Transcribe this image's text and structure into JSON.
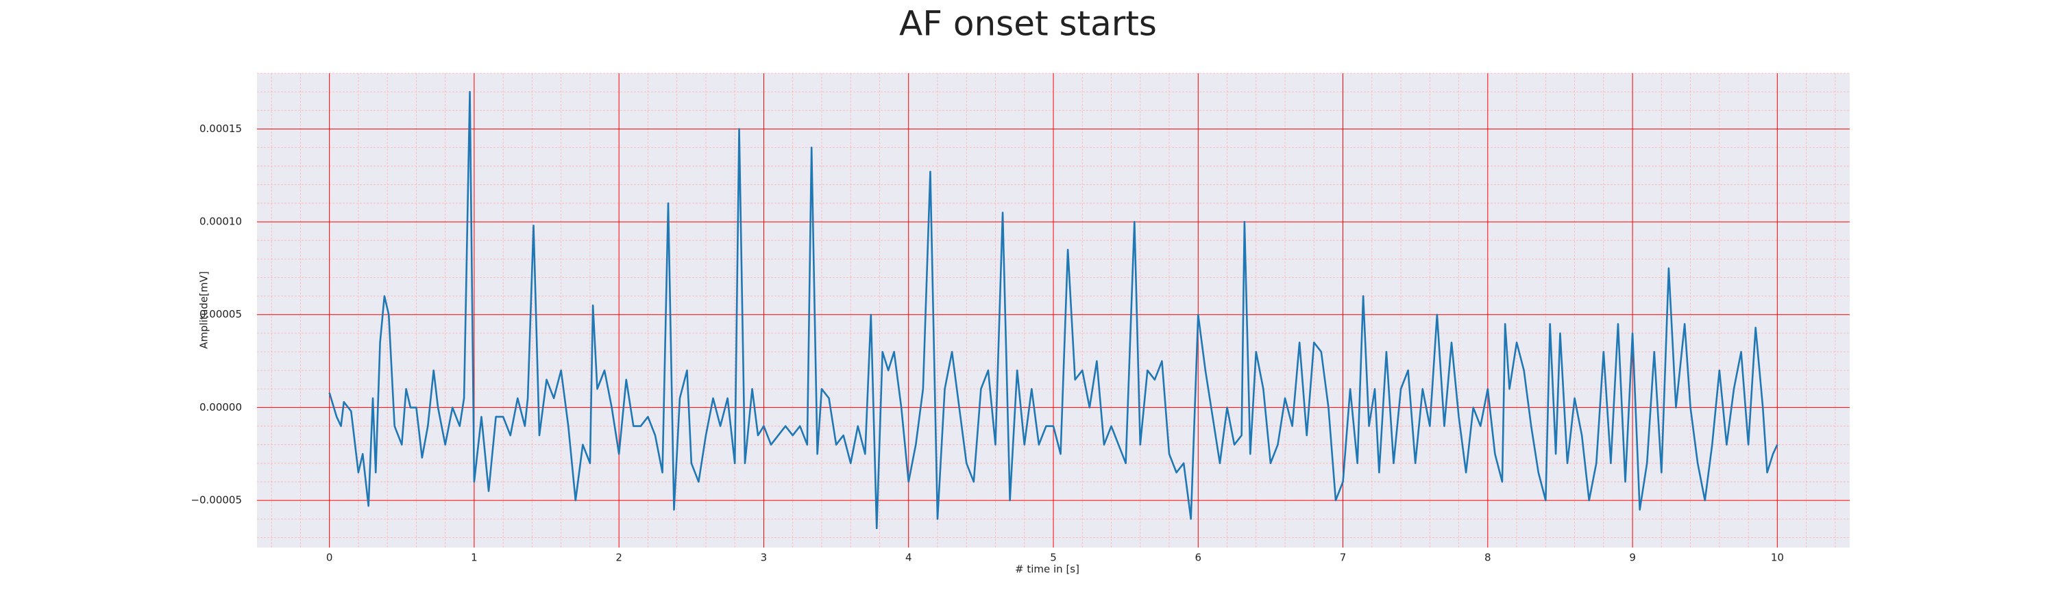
{
  "chart_data": {
    "type": "line",
    "title": "AF onset starts",
    "xlabel": "# time in [s]",
    "ylabel": "Amplitude[mV]",
    "color": "#1f77b4",
    "grid": true,
    "grid_color": "#ff0000",
    "minor_grid": true,
    "minor_grid_color": "#ffb3b3",
    "minor_grid_divisions": 5,
    "xlim": [
      -0.5,
      10.5
    ],
    "ylim": [
      -7.54e-05,
      0.00018
    ],
    "xticks": [
      0,
      1,
      2,
      3,
      4,
      5,
      6,
      7,
      8,
      9,
      10
    ],
    "yticks": [
      {
        "value": -5e-05,
        "label": "−0.00005"
      },
      {
        "value": 0,
        "label": "0.00000"
      },
      {
        "value": 5e-05,
        "label": "0.00005"
      },
      {
        "value": 0.0001,
        "label": "0.00010"
      },
      {
        "value": 0.00015,
        "label": "0.00015"
      }
    ],
    "x": [
      0,
      0.05,
      0.08,
      0.1,
      0.15,
      0.2,
      0.23,
      0.27,
      0.3,
      0.32,
      0.35,
      0.38,
      0.41,
      0.45,
      0.5,
      0.53,
      0.56,
      0.6,
      0.64,
      0.68,
      0.72,
      0.75,
      0.8,
      0.85,
      0.9,
      0.93,
      0.97,
      1.0,
      1.05,
      1.1,
      1.15,
      1.2,
      1.25,
      1.3,
      1.35,
      1.37,
      1.41,
      1.45,
      1.5,
      1.55,
      1.6,
      1.65,
      1.7,
      1.75,
      1.8,
      1.82,
      1.85,
      1.9,
      1.95,
      2.0,
      2.05,
      2.1,
      2.15,
      2.2,
      2.25,
      2.3,
      2.34,
      2.38,
      2.42,
      2.47,
      2.5,
      2.55,
      2.6,
      2.65,
      2.7,
      2.75,
      2.8,
      2.83,
      2.87,
      2.92,
      2.96,
      3.0,
      3.05,
      3.1,
      3.15,
      3.2,
      3.25,
      3.3,
      3.33,
      3.37,
      3.4,
      3.45,
      3.5,
      3.55,
      3.6,
      3.65,
      3.7,
      3.74,
      3.78,
      3.82,
      3.86,
      3.9,
      3.95,
      4.0,
      4.05,
      4.1,
      4.15,
      4.2,
      4.25,
      4.3,
      4.35,
      4.4,
      4.45,
      4.5,
      4.55,
      4.6,
      4.65,
      4.7,
      4.75,
      4.8,
      4.85,
      4.9,
      4.95,
      5.0,
      5.05,
      5.1,
      5.15,
      5.2,
      5.25,
      5.3,
      5.35,
      5.4,
      5.45,
      5.5,
      5.56,
      5.6,
      5.65,
      5.7,
      5.75,
      5.8,
      5.85,
      5.9,
      5.95,
      6.0,
      6.05,
      6.1,
      6.15,
      6.2,
      6.25,
      6.3,
      6.32,
      6.36,
      6.4,
      6.45,
      6.5,
      6.55,
      6.6,
      6.65,
      6.7,
      6.75,
      6.8,
      6.85,
      6.9,
      6.95,
      7.0,
      7.05,
      7.1,
      7.14,
      7.18,
      7.22,
      7.25,
      7.3,
      7.35,
      7.4,
      7.45,
      7.5,
      7.55,
      7.6,
      7.65,
      7.7,
      7.75,
      7.8,
      7.85,
      7.9,
      7.95,
      8.0,
      8.05,
      8.1,
      8.12,
      8.15,
      8.2,
      8.25,
      8.3,
      8.35,
      8.4,
      8.43,
      8.47,
      8.5,
      8.55,
      8.6,
      8.65,
      8.7,
      8.75,
      8.8,
      8.85,
      8.9,
      8.95,
      9.0,
      9.05,
      9.1,
      9.15,
      9.2,
      9.25,
      9.3,
      9.36,
      9.4,
      9.45,
      9.5,
      9.55,
      9.6,
      9.65,
      9.7,
      9.75,
      9.8,
      9.85,
      9.9,
      9.93,
      9.97,
      10.0
    ],
    "values": [
      8e-06,
      -5e-06,
      -1e-05,
      3e-06,
      -2e-06,
      -3.5e-05,
      -2.5e-05,
      -5.3e-05,
      5e-06,
      -3.5e-05,
      3.5e-05,
      6e-05,
      5e-05,
      -1e-05,
      -2e-05,
      1e-05,
      0,
      0,
      -2.7e-05,
      -1e-05,
      2e-05,
      0,
      -2e-05,
      0,
      -1e-05,
      5e-06,
      0.00017,
      -4e-05,
      -5e-06,
      -4.5e-05,
      -5e-06,
      -5e-06,
      -1.5e-05,
      5e-06,
      -1e-05,
      5e-06,
      9.8e-05,
      -1.5e-05,
      1.5e-05,
      5e-06,
      2e-05,
      -1e-05,
      -5e-05,
      -2e-05,
      -3e-05,
      5.5e-05,
      1e-05,
      2e-05,
      0,
      -2.5e-05,
      1.5e-05,
      -1e-05,
      -1e-05,
      -5e-06,
      -1.5e-05,
      -3.5e-05,
      0.00011,
      -5.5e-05,
      5e-06,
      2e-05,
      -3e-05,
      -4e-05,
      -1.5e-05,
      5e-06,
      -1e-05,
      5e-06,
      -3e-05,
      0.00015,
      -3e-05,
      1e-05,
      -1.5e-05,
      -1e-05,
      -2e-05,
      -1.5e-05,
      -1e-05,
      -1.5e-05,
      -1e-05,
      -2e-05,
      0.00014,
      -2.5e-05,
      1e-05,
      5e-06,
      -2e-05,
      -1.5e-05,
      -3e-05,
      -1e-05,
      -2.5e-05,
      5e-05,
      -6.5e-05,
      3e-05,
      2e-05,
      3e-05,
      0,
      -4e-05,
      -2e-05,
      1e-05,
      0.000127,
      -6e-05,
      1e-05,
      3e-05,
      0,
      -3e-05,
      -4e-05,
      1e-05,
      2e-05,
      -2e-05,
      0.000105,
      -5e-05,
      2e-05,
      -2e-05,
      1e-05,
      -2e-05,
      -1e-05,
      -1e-05,
      -2.5e-05,
      8.5e-05,
      1.5e-05,
      2e-05,
      0,
      2.5e-05,
      -2e-05,
      -1e-05,
      -2e-05,
      -3e-05,
      0.0001,
      -2e-05,
      2e-05,
      1.5e-05,
      2.5e-05,
      -2.5e-05,
      -3.5e-05,
      -3e-05,
      -6e-05,
      5e-05,
      2e-05,
      -5e-06,
      -3e-05,
      0,
      -2e-05,
      -1.5e-05,
      0.0001,
      -2.5e-05,
      3e-05,
      1e-05,
      -3e-05,
      -2e-05,
      5e-06,
      -1e-05,
      3.5e-05,
      -1.5e-05,
      3.5e-05,
      3e-05,
      0,
      -5e-05,
      -4e-05,
      1e-05,
      -3e-05,
      6e-05,
      -1e-05,
      1e-05,
      -3.5e-05,
      3e-05,
      -3e-05,
      1e-05,
      2e-05,
      -3e-05,
      1e-05,
      -1e-05,
      5e-05,
      -1e-05,
      3.5e-05,
      -5e-06,
      -3.5e-05,
      0,
      -1e-05,
      1e-05,
      -2.5e-05,
      -4e-05,
      4.5e-05,
      1e-05,
      3.5e-05,
      2e-05,
      -1e-05,
      -3.5e-05,
      -5e-05,
      4.5e-05,
      -2.5e-05,
      4e-05,
      -3e-05,
      5e-06,
      -1.5e-05,
      -5e-05,
      -3e-05,
      3e-05,
      -3e-05,
      4.5e-05,
      -4e-05,
      4e-05,
      -5.5e-05,
      -3e-05,
      3e-05,
      -3.5e-05,
      7.5e-05,
      0,
      4.5e-05,
      0,
      -3e-05,
      -5e-05,
      -2e-05,
      2e-05,
      -2e-05,
      1e-05,
      3e-05,
      -2e-05,
      4.3e-05,
      0,
      -3.5e-05,
      -2.5e-05,
      -2e-05
    ]
  }
}
